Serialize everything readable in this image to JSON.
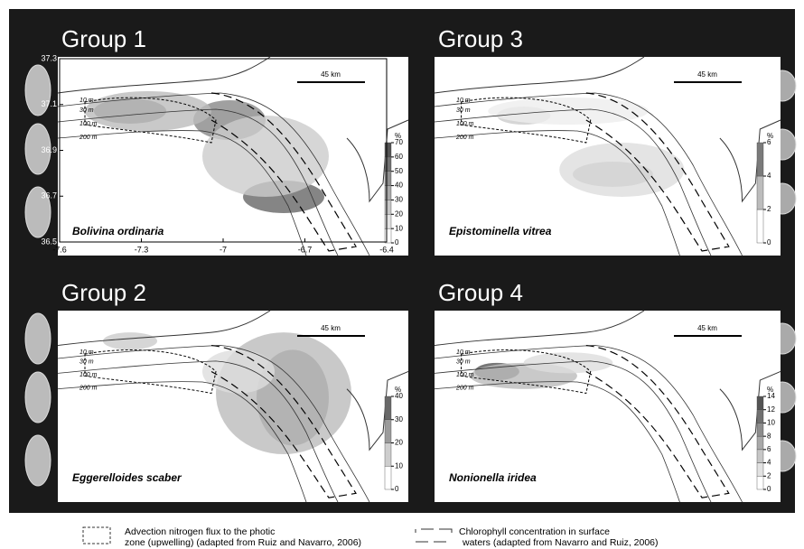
{
  "panels": [
    {
      "group": "Group 1",
      "species": "Bolivina ordinaria",
      "scale": "45 km",
      "depths": [
        "10 m",
        "30 m",
        "100 m",
        "200 m"
      ],
      "colorbar": {
        "unit": "%",
        "ticks": [
          0,
          10,
          20,
          30,
          40,
          50,
          60,
          70
        ]
      }
    },
    {
      "group": "Group 3",
      "species": "Epistominella vitrea",
      "scale": "45 km",
      "depths": [
        "10 m",
        "30 m",
        "100 m",
        "200 m"
      ],
      "colorbar": {
        "unit": "%",
        "ticks": [
          0,
          2,
          4,
          6
        ]
      }
    },
    {
      "group": "Group 2",
      "species": "Eggerelloides scaber",
      "scale": "45 km",
      "depths": [
        "10 m",
        "30 m",
        "100 m",
        "200 m"
      ],
      "colorbar": {
        "unit": "%",
        "ticks": [
          0,
          10,
          20,
          30,
          40
        ]
      }
    },
    {
      "group": "Group 4",
      "species": "Nonionella iridea",
      "scale": "45 km",
      "depths": [
        "10 m",
        "30 m",
        "100 m",
        "200 m"
      ],
      "colorbar": {
        "unit": "%",
        "ticks": [
          0,
          2,
          4,
          6,
          8,
          10,
          12,
          14
        ]
      }
    }
  ],
  "axes": {
    "y": [
      37.3,
      37.1,
      36.9,
      36.7,
      36.5
    ],
    "x": [
      -7.6,
      -7.3,
      -7,
      -6.7,
      -6.4
    ]
  },
  "legend": [
    {
      "lines": [
        "Advection nitrogen flux to the photic",
        "zone (upwelling) (adapted from Ruiz and Navarro, 2006)"
      ]
    },
    {
      "lines": [
        "Chlorophyll concentration in surface",
        "waters (adapted from Navarro and Ruiz, 2006)"
      ]
    }
  ]
}
